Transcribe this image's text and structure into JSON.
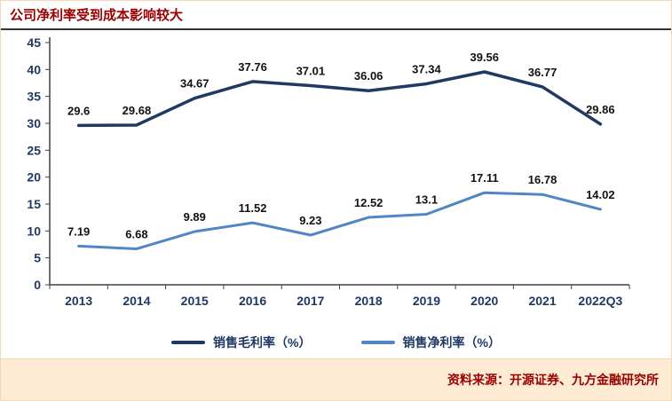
{
  "title": "公司净利率受到成本影响较大",
  "source": {
    "text": "资料来源：开源证券、九方金融研究所"
  },
  "chart_data": {
    "type": "line",
    "title": "公司净利率受到成本影响较大",
    "categories": [
      "2013",
      "2014",
      "2015",
      "2016",
      "2017",
      "2018",
      "2019",
      "2020",
      "2021",
      "2022Q3"
    ],
    "series": [
      {
        "name": "销售毛利率（%）",
        "color": "#1f3864",
        "stroke_width": 3.5,
        "values": [
          29.6,
          29.68,
          34.67,
          37.76,
          37.01,
          36.06,
          37.34,
          39.56,
          36.77,
          29.86
        ]
      },
      {
        "name": "销售净利率（%）",
        "color": "#4f86c6",
        "stroke_width": 3,
        "values": [
          7.19,
          6.68,
          9.89,
          11.52,
          9.23,
          12.52,
          13.1,
          17.11,
          16.78,
          14.02
        ]
      }
    ],
    "xlabel": "",
    "ylabel": "",
    "ylim": [
      0,
      45
    ],
    "ytick_step": 5,
    "grid": false,
    "legend_position": "bottom",
    "data_labels": true
  },
  "colors": {
    "title": "#990000",
    "axis": "#404040",
    "axis_label": "#1f3864",
    "data_label": "#111111",
    "footer_bg": "#fdebd3"
  }
}
